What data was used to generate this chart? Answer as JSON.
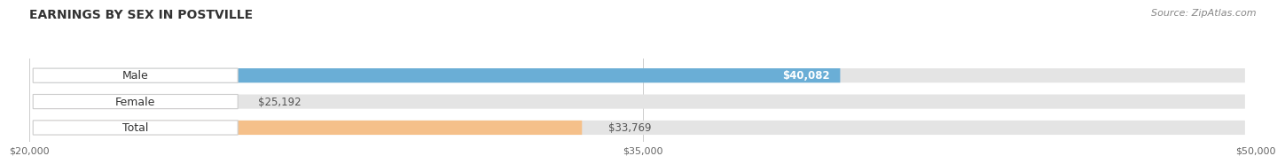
{
  "title": "EARNINGS BY SEX IN POSTVILLE",
  "source": "Source: ZipAtlas.com",
  "categories": [
    "Male",
    "Female",
    "Total"
  ],
  "values": [
    40082,
    25192,
    33769
  ],
  "bar_colors": [
    "#6aaed6",
    "#f4a0b5",
    "#f5c08a"
  ],
  "bar_bg_color": "#e4e4e4",
  "value_labels": [
    "$40,082",
    "$25,192",
    "$33,769"
  ],
  "value_label_colors": [
    "#ffffff",
    "#555555",
    "#555555"
  ],
  "xmin": 20000,
  "xmax": 50000,
  "xticks": [
    20000,
    35000,
    50000
  ],
  "xtick_labels": [
    "$20,000",
    "$35,000",
    "$50,000"
  ],
  "title_fontsize": 10,
  "bar_label_fontsize": 9,
  "value_fontsize": 8.5,
  "source_fontsize": 8,
  "fig_bg_color": "#ffffff"
}
